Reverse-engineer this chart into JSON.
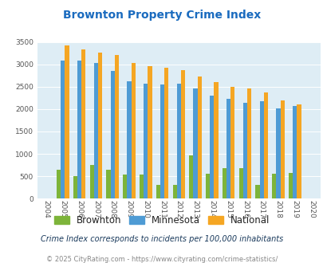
{
  "title": "Brownton Property Crime Index",
  "years": [
    2004,
    2005,
    2006,
    2007,
    2008,
    2009,
    2010,
    2011,
    2012,
    2013,
    2014,
    2015,
    2016,
    2017,
    2018,
    2019,
    2020
  ],
  "brownton": [
    0,
    650,
    500,
    750,
    640,
    530,
    530,
    300,
    300,
    960,
    560,
    680,
    680,
    300,
    560,
    570,
    0
  ],
  "minnesota": [
    0,
    3080,
    3080,
    3040,
    2850,
    2630,
    2570,
    2560,
    2570,
    2460,
    2310,
    2230,
    2140,
    2180,
    2010,
    2070,
    0
  ],
  "national": [
    0,
    3420,
    3340,
    3260,
    3210,
    3040,
    2960,
    2920,
    2870,
    2730,
    2600,
    2500,
    2470,
    2380,
    2200,
    2110,
    0
  ],
  "bar_colors": {
    "brownton": "#7db43a",
    "minnesota": "#4e9bd4",
    "national": "#f5a623"
  },
  "ylim": [
    0,
    3500
  ],
  "yticks": [
    0,
    500,
    1000,
    1500,
    2000,
    2500,
    3000,
    3500
  ],
  "plot_bg": "#deedf5",
  "title_color": "#1a6bbf",
  "footer_text1": "Crime Index corresponds to incidents per 100,000 inhabitants",
  "footer_text2": "© 2025 CityRating.com - https://www.cityrating.com/crime-statistics/",
  "legend_labels": [
    "Brownton",
    "Minnesota",
    "National"
  ]
}
